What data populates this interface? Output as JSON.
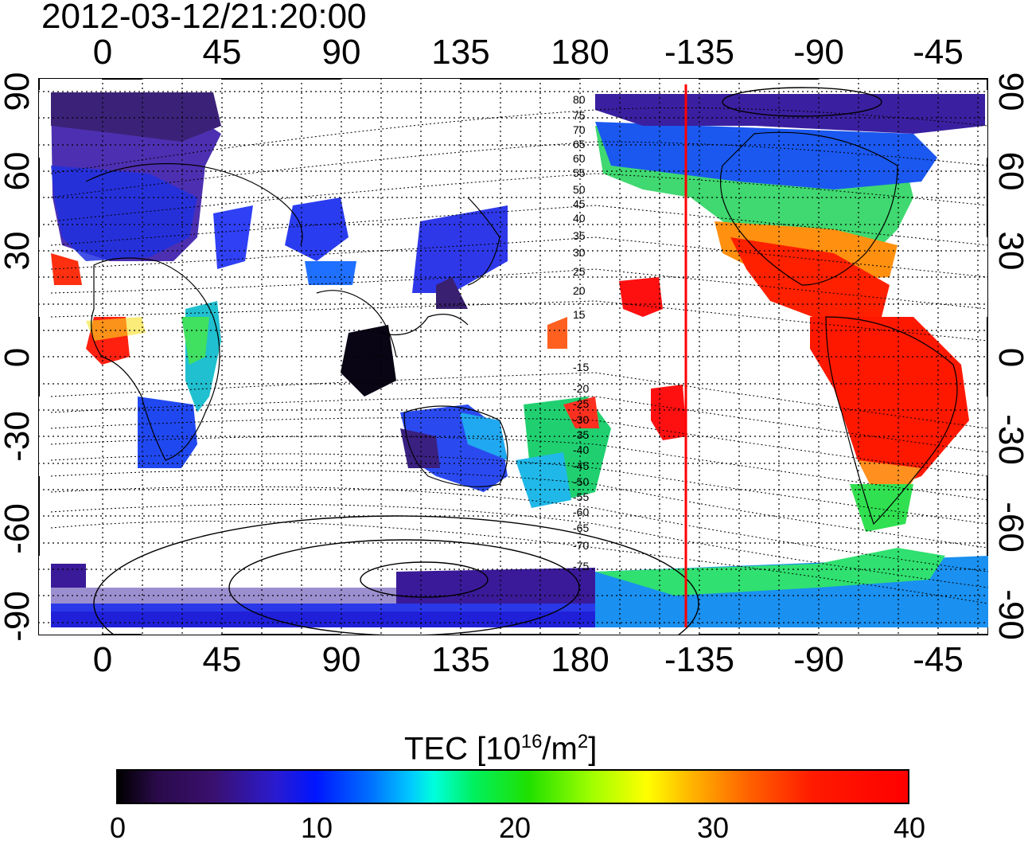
{
  "title": "2012-03-12/21:20:00",
  "x_ticks": [
    "0",
    "45",
    "90",
    "135",
    "180",
    "-135",
    "-90",
    "-45"
  ],
  "y_ticks": [
    "90",
    "60",
    "30",
    "0",
    "-30",
    "-60",
    "-90"
  ],
  "mlat_labels_north": [
    "80",
    "75",
    "70",
    "65",
    "60",
    "55",
    "50",
    "45",
    "40",
    "35",
    "30",
    "25",
    "20",
    "15"
  ],
  "mlat_labels_south": [
    "-15",
    "-20",
    "-25",
    "-30",
    "-35",
    "-40",
    "-45",
    "-50",
    "-55",
    "-60",
    "-65",
    "-70",
    "-75"
  ],
  "colorbar": {
    "label_main": "TEC  [10",
    "label_exp": "16",
    "label_mid": "/m",
    "label_exp2": "2",
    "label_end": "]",
    "min": 0,
    "max": 40,
    "ticks": [
      "0",
      "10",
      "20",
      "30",
      "40"
    ]
  },
  "marker": {
    "longitude": -139,
    "color": "#ff0000"
  },
  "colors": {
    "low": "#000000",
    "mid": "#00ff60",
    "high": "#ff0000"
  }
}
